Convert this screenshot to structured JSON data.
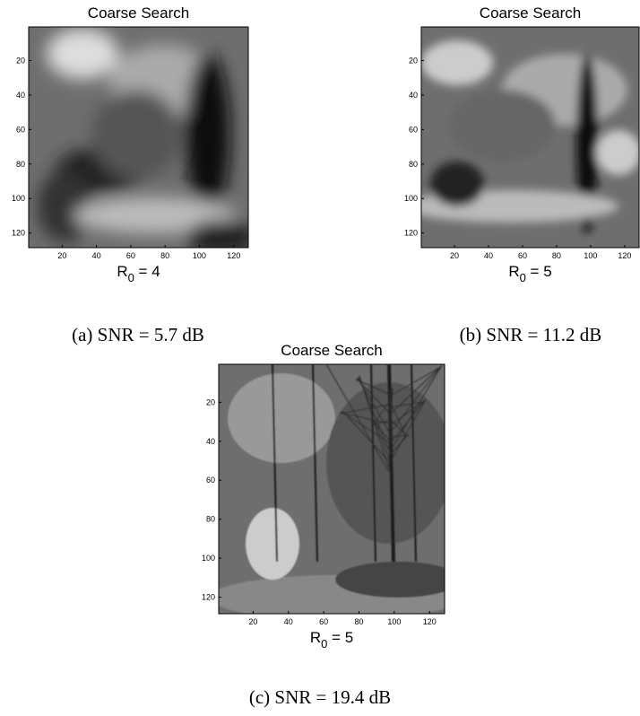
{
  "panels": [
    {
      "title": "Coarse Search",
      "xlabel": {
        "main": "R",
        "sub": "0",
        "tail": " = 4"
      },
      "xlim": [
        0.5,
        128.5
      ],
      "ylim": [
        0.5,
        128.5
      ],
      "xticks": [
        20,
        40,
        60,
        80,
        100,
        120
      ],
      "yticks": [
        20,
        40,
        60,
        80,
        100,
        120
      ],
      "caption": "(a) SNR = 5.7 dB"
    },
    {
      "title": "Coarse Search",
      "xlabel": {
        "main": "R",
        "sub": "0",
        "tail": " = 5"
      },
      "xlim": [
        0.5,
        128.5
      ],
      "ylim": [
        0.5,
        128.5
      ],
      "xticks": [
        20,
        40,
        60,
        80,
        100,
        120
      ],
      "yticks": [
        20,
        40,
        60,
        80,
        100,
        120
      ],
      "caption": "(b) SNR = 11.2 dB"
    },
    {
      "title": "Coarse Search",
      "xlabel": {
        "main": "R",
        "sub": "0",
        "tail": " = 5"
      },
      "xlim": [
        0.5,
        128.5
      ],
      "ylim": [
        0.5,
        128.5
      ],
      "xticks": [
        20,
        40,
        60,
        80,
        100,
        120
      ],
      "yticks": [
        20,
        40,
        60,
        80,
        100,
        120
      ],
      "caption": "(c) SNR = 19.4 dB"
    }
  ]
}
